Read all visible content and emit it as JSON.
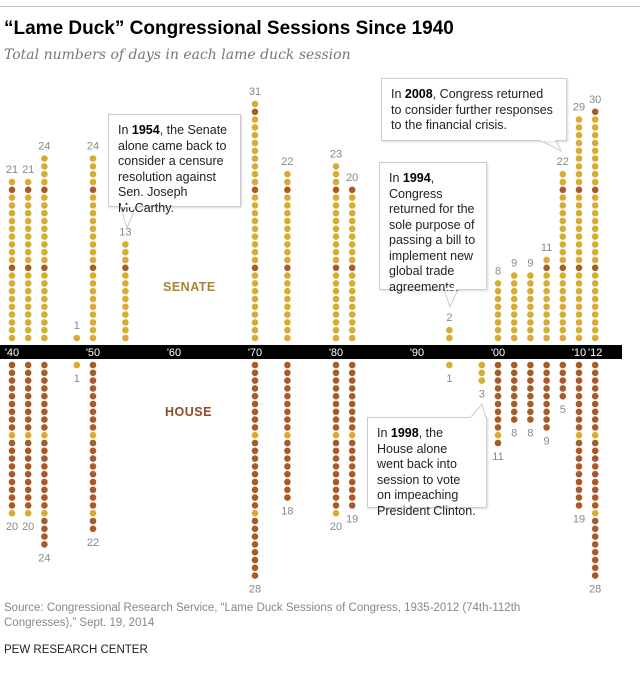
{
  "chart_data": {
    "type": "dot",
    "title": "“Lame Duck” Congressional Sessions Since 1940",
    "subtitle": "Total numbers of days in each lame duck session",
    "x_ticks": [
      "'40",
      "'50",
      "'60",
      "'70",
      "'80",
      "'90",
      "'00",
      "'10",
      "'12"
    ],
    "x_tick_years": [
      1940,
      1950,
      1960,
      1970,
      1980,
      1990,
      2000,
      2010,
      2012
    ],
    "series_labels": {
      "senate": "SENATE",
      "house": "HOUSE"
    },
    "colors": {
      "senate": "#d8ab31",
      "house": "#a95a28",
      "senate_label": "#a8872a",
      "house_label": "#8f4c22"
    },
    "highlight_every": 10,
    "sessions": [
      {
        "year": 1940,
        "senate": 21,
        "house": 20
      },
      {
        "year": 1942,
        "senate": 21,
        "house": 20
      },
      {
        "year": 1944,
        "senate": 24,
        "house": 24
      },
      {
        "year": 1948,
        "senate": 1,
        "house": 1,
        "house_color": "senate"
      },
      {
        "year": 1950,
        "senate": 24,
        "house": 22
      },
      {
        "year": 1954,
        "senate": 13,
        "house": 0
      },
      {
        "year": 1970,
        "senate": 31,
        "house": 28
      },
      {
        "year": 1974,
        "senate": 22,
        "house": 18
      },
      {
        "year": 1980,
        "senate": 23,
        "house": 20
      },
      {
        "year": 1982,
        "senate": 20,
        "house": 19
      },
      {
        "year": 1994,
        "senate": 2,
        "house": 1,
        "house_color": "senate"
      },
      {
        "year": 1998,
        "senate": 0,
        "house": 3,
        "house_color": "senate"
      },
      {
        "year": 2000,
        "senate": 8,
        "house": 11
      },
      {
        "year": 2002,
        "senate": 9,
        "house": 8
      },
      {
        "year": 2004,
        "senate": 9,
        "house": 8
      },
      {
        "year": 2006,
        "senate": 11,
        "house": 9
      },
      {
        "year": 2008,
        "senate": 22,
        "house": 5
      },
      {
        "year": 2010,
        "senate": 29,
        "house": 19
      },
      {
        "year": 2012,
        "senate": 30,
        "house": 28
      }
    ],
    "annotations": [
      {
        "pre": "In ",
        "year": "1954",
        "post": ", the Senate alone came back to consider a censure resolution against Sen. Joseph McCarthy."
      },
      {
        "pre": "In ",
        "year": "2008",
        "post": ", Congress returned to consider further responses to the financial crisis."
      },
      {
        "pre": "In ",
        "year": "1994",
        "post": ", Congress returned for the sole purpose of passing a bill to implement new global trade agreements."
      },
      {
        "pre": "In ",
        "year": "1998",
        "post": ", the House alone went back into session to vote on impeaching President Clinton."
      }
    ]
  },
  "footer": {
    "source": "Source: Congressional Research Service, “Lame Duck Sessions of Congress, 1935-2012 (74th-112th Congresses),” Sept. 19, 2014",
    "brand": "PEW RESEARCH CENTER"
  }
}
